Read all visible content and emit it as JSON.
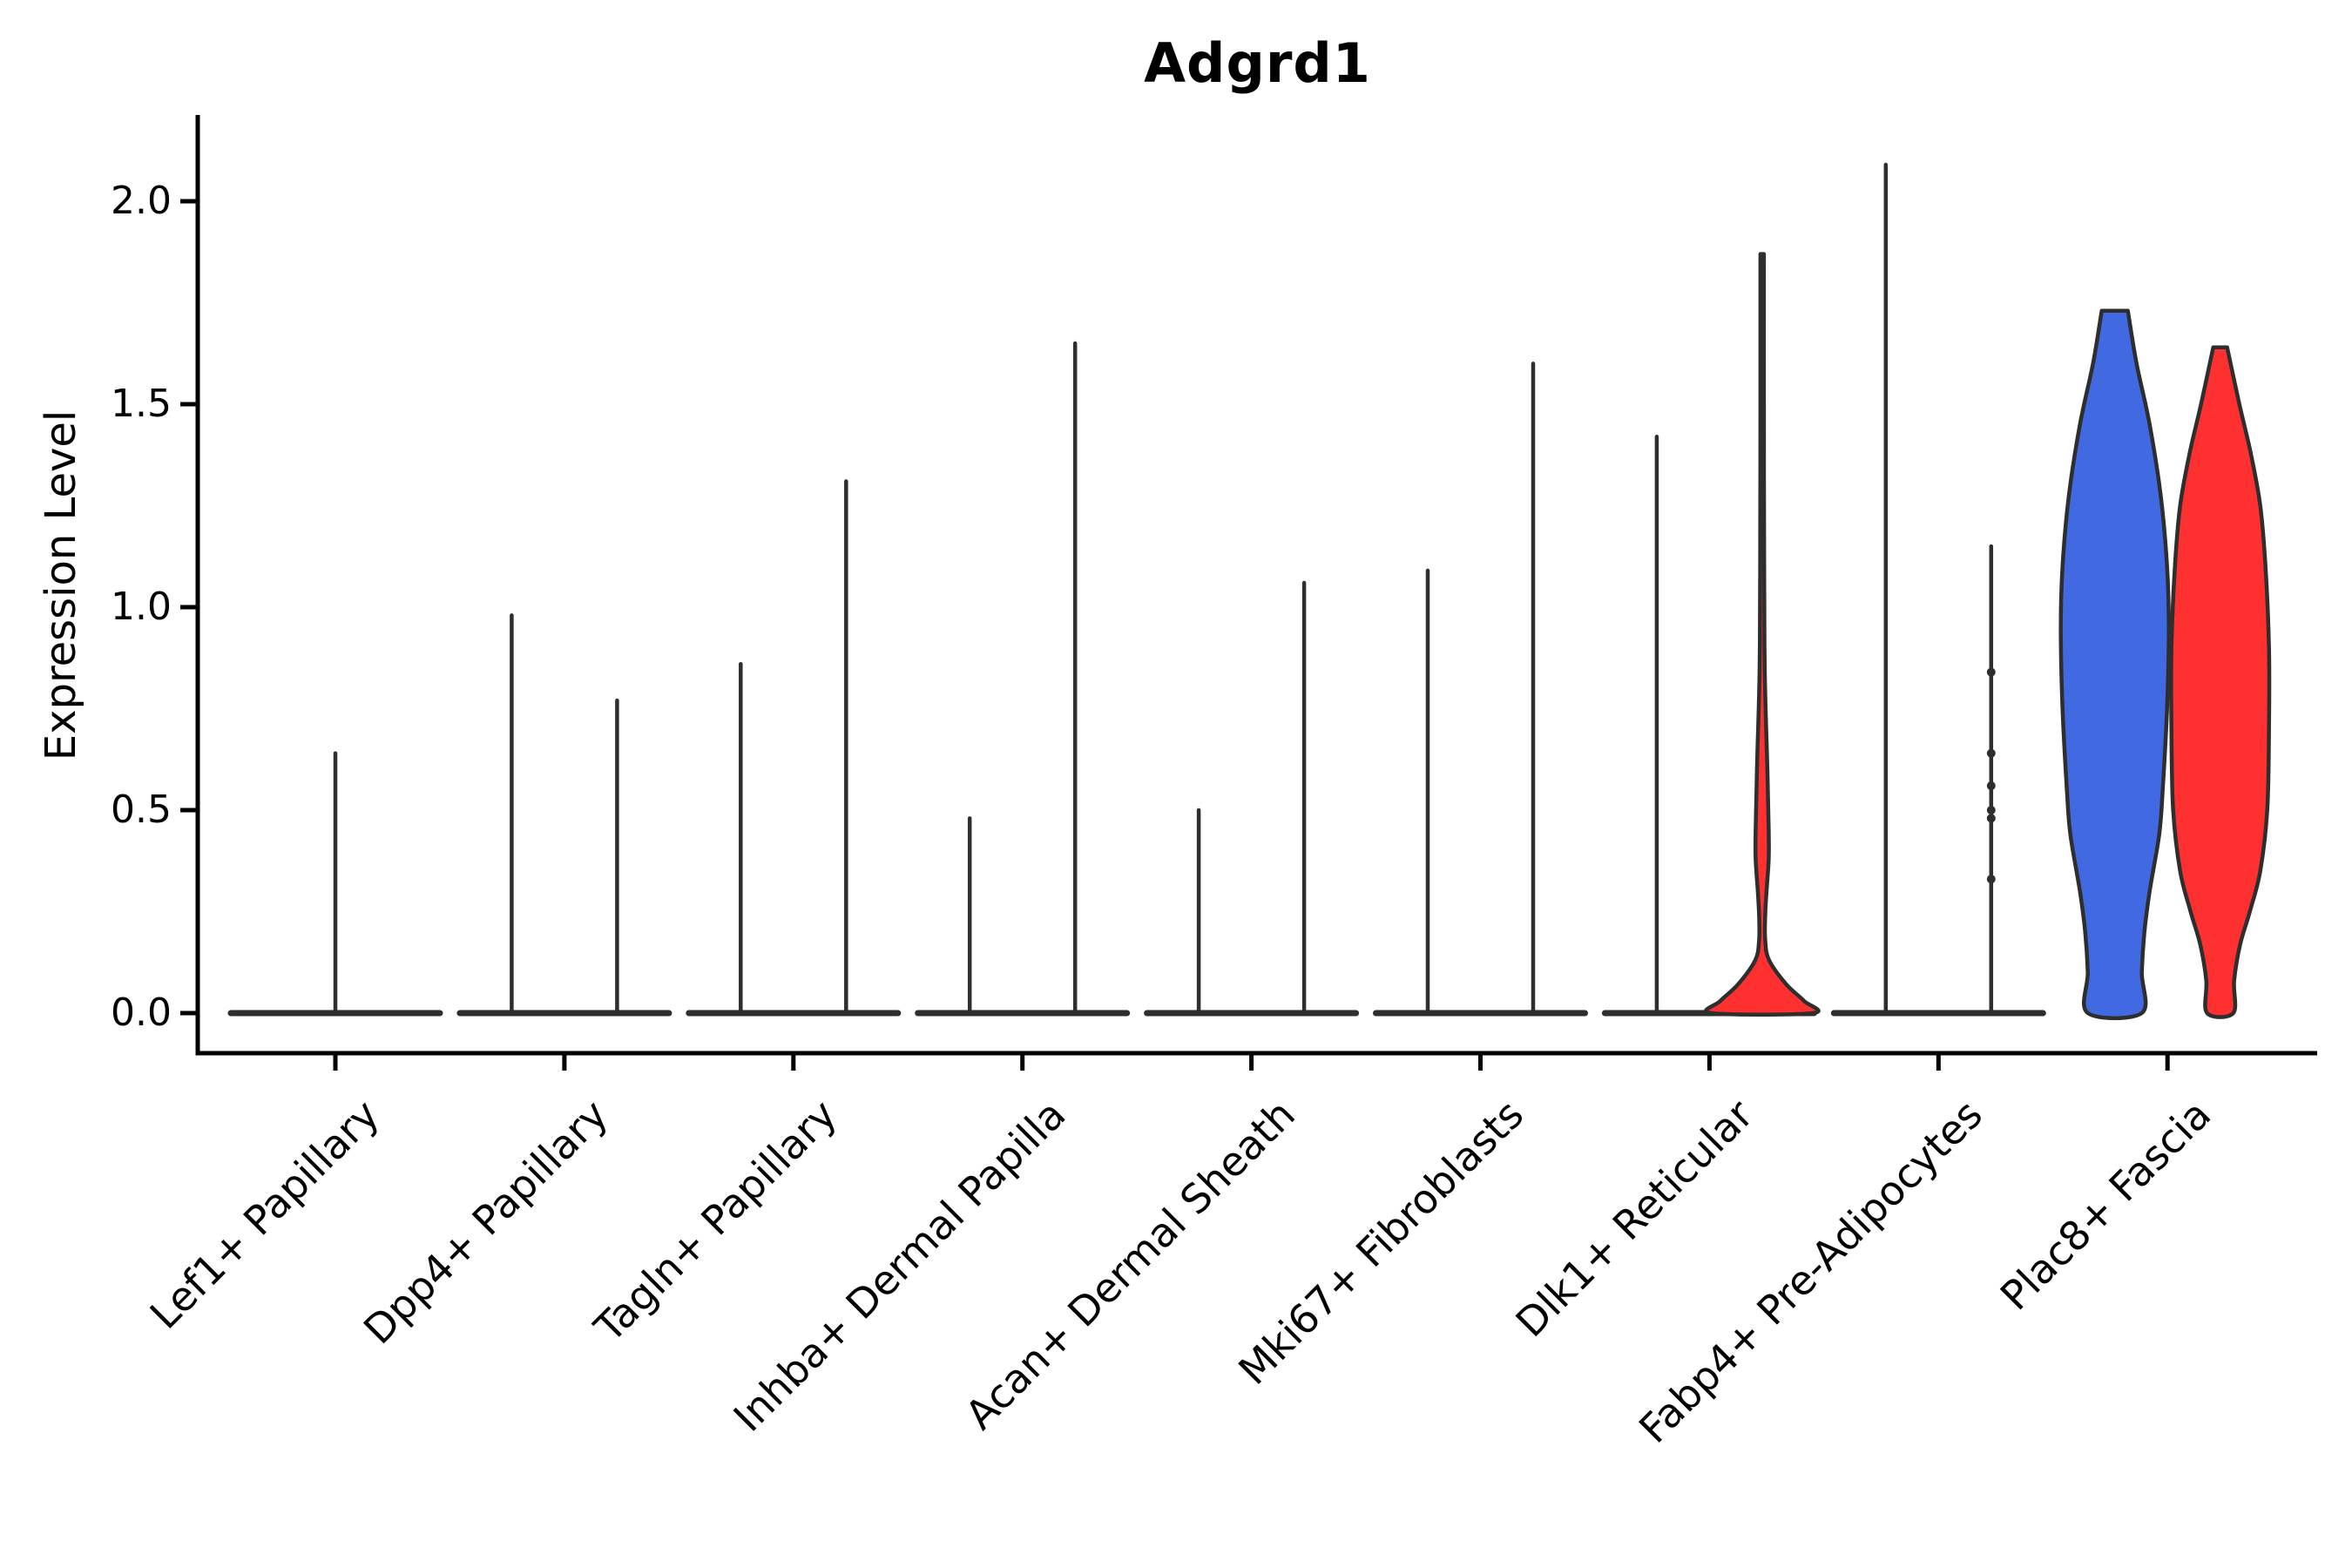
{
  "chart_data": {
    "type": "violin",
    "title": "Adgrd1",
    "ylabel": "Expression Level",
    "xlabel": "",
    "ylim": [
      0,
      2.15
    ],
    "grid": false,
    "legend": "none",
    "yticks": [
      0,
      0.5,
      1.0,
      1.5,
      2.0
    ],
    "ytick_labels": [
      "0.0",
      "0.5",
      "1.0",
      "1.5",
      "2.0"
    ],
    "categories": [
      "Lef1+ Papillary",
      "Dpp4+ Papillary",
      "Tagln+ Papillary",
      "Inhba+ Dermal Papilla",
      "Acan+ Dermal Sheath",
      "Mki67+ Fibroblasts",
      "Dlk1+ Reticular",
      "Fabp4+ Pre-Adipocytes",
      "Plac8+ Fascia"
    ],
    "series": [
      {
        "name": "blue",
        "color": "#4169E1"
      },
      {
        "name": "red",
        "color": "#FF3030"
      }
    ],
    "ink_color": "#2e2e2e",
    "axis_color": "#000000",
    "violins": [
      {
        "category": "Lef1+ Papillary",
        "base": true,
        "items": [
          {
            "side": 0,
            "kind": "spike",
            "max": 0.64
          }
        ]
      },
      {
        "category": "Dpp4+ Papillary",
        "base": true,
        "items": [
          {
            "side": -1,
            "kind": "spike",
            "max": 0.98
          },
          {
            "side": 1,
            "kind": "spike",
            "max": 0.77
          }
        ]
      },
      {
        "category": "Tagln+ Papillary",
        "base": true,
        "items": [
          {
            "side": -1,
            "kind": "spike",
            "max": 0.86
          },
          {
            "side": 1,
            "kind": "spike",
            "max": 1.31
          }
        ]
      },
      {
        "category": "Inhba+ Dermal Papilla",
        "base": true,
        "items": [
          {
            "side": -1,
            "kind": "spike",
            "max": 0.48
          },
          {
            "side": 1,
            "kind": "spike",
            "max": 1.65
          }
        ]
      },
      {
        "category": "Acan+ Dermal Sheath",
        "base": true,
        "items": [
          {
            "side": -1,
            "kind": "spike",
            "max": 0.5
          },
          {
            "side": 1,
            "kind": "spike",
            "max": 1.06
          }
        ]
      },
      {
        "category": "Mki67+ Fibroblasts",
        "base": true,
        "items": [
          {
            "side": -1,
            "kind": "spike",
            "max": 1.09
          },
          {
            "side": 1,
            "kind": "spike",
            "max": 1.6
          }
        ]
      },
      {
        "category": "Dlk1+ Reticular",
        "base": true,
        "items": [
          {
            "side": -1,
            "kind": "spike",
            "max": 1.42
          },
          {
            "side": 1,
            "kind": "shape",
            "max": 1.87,
            "series": 1,
            "profile": [
              [
                1.87,
                2
              ],
              [
                1.5,
                2
              ],
              [
                1.1,
                2.3
              ],
              [
                0.84,
                3
              ],
              [
                0.6,
                6
              ],
              [
                0.45,
                7.5
              ],
              [
                0.38,
                7.5
              ],
              [
                0.3,
                5
              ],
              [
                0.24,
                3.5
              ],
              [
                0.18,
                3.5
              ],
              [
                0.13,
                8
              ],
              [
                0.07,
                28
              ],
              [
                0.03,
                48
              ],
              [
                0.0,
                58
              ]
            ]
          }
        ]
      },
      {
        "category": "Fabp4+ Pre-Adipocytes",
        "base": true,
        "items": [
          {
            "side": -1,
            "kind": "spike",
            "max": 2.09
          },
          {
            "side": 1,
            "kind": "spike",
            "max": 1.15,
            "dots": [
              0.84,
              0.64,
              0.56,
              0.5,
              0.48,
              0.33
            ]
          }
        ]
      },
      {
        "category": "Plac8+ Fascia",
        "base": false,
        "items": [
          {
            "side": -1,
            "kind": "shape",
            "max": 1.73,
            "series": 0,
            "profile": [
              [
                1.73,
                15
              ],
              [
                1.6,
                25
              ],
              [
                1.45,
                40
              ],
              [
                1.27,
                53
              ],
              [
                1.1,
                60
              ],
              [
                0.95,
                62
              ],
              [
                0.75,
                60
              ],
              [
                0.55,
                55
              ],
              [
                0.44,
                51
              ],
              [
                0.3,
                40
              ],
              [
                0.2,
                34
              ],
              [
                0.1,
                31
              ],
              [
                0.0,
                31
              ]
            ]
          },
          {
            "side": 1,
            "kind": "shape",
            "max": 1.64,
            "series": 1,
            "profile": [
              [
                1.64,
                8
              ],
              [
                1.5,
                22
              ],
              [
                1.38,
                35
              ],
              [
                1.25,
                46
              ],
              [
                1.1,
                52
              ],
              [
                0.9,
                56
              ],
              [
                0.7,
                56
              ],
              [
                0.5,
                54
              ],
              [
                0.35,
                46
              ],
              [
                0.25,
                34
              ],
              [
                0.17,
                23
              ],
              [
                0.08,
                16
              ],
              [
                0.0,
                15
              ]
            ]
          }
        ]
      }
    ]
  }
}
